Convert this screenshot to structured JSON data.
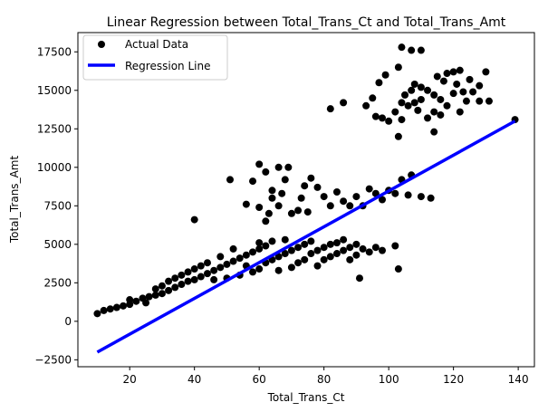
{
  "chart_data": {
    "type": "scatter",
    "title": "Linear Regression between Total_Trans_Ct and Total_Trans_Amt",
    "xlabel": "Total_Trans_Ct",
    "ylabel": "Total_Trans_Amt",
    "xlim": [
      4,
      145
    ],
    "ylim": [
      -2950,
      18750
    ],
    "xticks": [
      20,
      40,
      60,
      80,
      100,
      120,
      140
    ],
    "yticks": [
      -2500,
      0,
      2500,
      5000,
      7500,
      10000,
      12500,
      15000,
      17500
    ],
    "grid": false,
    "legend_position": "top-left",
    "series": [
      {
        "name": "Actual Data",
        "kind": "scatter",
        "color": "#000000",
        "points": [
          [
            10,
            500
          ],
          [
            12,
            700
          ],
          [
            14,
            800
          ],
          [
            16,
            900
          ],
          [
            18,
            1000
          ],
          [
            20,
            1100
          ],
          [
            20,
            1400
          ],
          [
            22,
            1300
          ],
          [
            24,
            1500
          ],
          [
            25,
            1200
          ],
          [
            26,
            1600
          ],
          [
            28,
            1700
          ],
          [
            28,
            2100
          ],
          [
            30,
            1800
          ],
          [
            30,
            2300
          ],
          [
            32,
            2000
          ],
          [
            32,
            2600
          ],
          [
            34,
            2200
          ],
          [
            34,
            2800
          ],
          [
            36,
            2400
          ],
          [
            36,
            3000
          ],
          [
            38,
            2600
          ],
          [
            38,
            3200
          ],
          [
            40,
            2700
          ],
          [
            40,
            3400
          ],
          [
            42,
            2900
          ],
          [
            42,
            3600
          ],
          [
            44,
            3100
          ],
          [
            44,
            3800
          ],
          [
            46,
            3300
          ],
          [
            46,
            2700
          ],
          [
            48,
            3500
          ],
          [
            48,
            4200
          ],
          [
            50,
            3700
          ],
          [
            50,
            2800
          ],
          [
            52,
            3900
          ],
          [
            52,
            4700
          ],
          [
            54,
            4100
          ],
          [
            54,
            3000
          ],
          [
            56,
            4300
          ],
          [
            56,
            3600
          ],
          [
            58,
            4500
          ],
          [
            58,
            3200
          ],
          [
            60,
            4700
          ],
          [
            60,
            3400
          ],
          [
            60,
            5100
          ],
          [
            62,
            3800
          ],
          [
            62,
            4900
          ],
          [
            64,
            4000
          ],
          [
            64,
            5200
          ],
          [
            66,
            4200
          ],
          [
            66,
            3300
          ],
          [
            68,
            4400
          ],
          [
            68,
            5300
          ],
          [
            70,
            4600
          ],
          [
            70,
            3500
          ],
          [
            72,
            4800
          ],
          [
            72,
            3800
          ],
          [
            74,
            5000
          ],
          [
            74,
            4000
          ],
          [
            76,
            4400
          ],
          [
            76,
            5200
          ],
          [
            78,
            4600
          ],
          [
            78,
            3600
          ],
          [
            80,
            4800
          ],
          [
            80,
            4000
          ],
          [
            82,
            5000
          ],
          [
            82,
            4200
          ],
          [
            84,
            5100
          ],
          [
            84,
            4400
          ],
          [
            86,
            4600
          ],
          [
            86,
            5300
          ],
          [
            88,
            4800
          ],
          [
            88,
            4000
          ],
          [
            90,
            5000
          ],
          [
            90,
            4300
          ],
          [
            92,
            4700
          ],
          [
            94,
            4500
          ],
          [
            96,
            4800
          ],
          [
            98,
            4600
          ],
          [
            91,
            2800
          ],
          [
            103,
            3400
          ],
          [
            102,
            4900
          ],
          [
            40,
            6600
          ],
          [
            51,
            9200
          ],
          [
            58,
            9100
          ],
          [
            60,
            10200
          ],
          [
            62,
            9700
          ],
          [
            64,
            8500
          ],
          [
            66,
            10000
          ],
          [
            68,
            9200
          ],
          [
            69,
            10000
          ],
          [
            56,
            7600
          ],
          [
            60,
            7400
          ],
          [
            62,
            6500
          ],
          [
            63,
            7000
          ],
          [
            64,
            8000
          ],
          [
            66,
            7500
          ],
          [
            67,
            8300
          ],
          [
            70,
            7000
          ],
          [
            72,
            7200
          ],
          [
            73,
            8000
          ],
          [
            74,
            8800
          ],
          [
            75,
            7100
          ],
          [
            76,
            9300
          ],
          [
            78,
            8700
          ],
          [
            80,
            8100
          ],
          [
            82,
            7500
          ],
          [
            84,
            8400
          ],
          [
            86,
            7800
          ],
          [
            88,
            7500
          ],
          [
            90,
            8100
          ],
          [
            92,
            7500
          ],
          [
            94,
            8600
          ],
          [
            96,
            8300
          ],
          [
            98,
            7900
          ],
          [
            100,
            8500
          ],
          [
            102,
            8300
          ],
          [
            104,
            9200
          ],
          [
            106,
            8200
          ],
          [
            107,
            9500
          ],
          [
            110,
            8100
          ],
          [
            113,
            8000
          ],
          [
            100,
            13000
          ],
          [
            102,
            13600
          ],
          [
            103,
            12000
          ],
          [
            104,
            13100
          ],
          [
            104,
            14200
          ],
          [
            105,
            14700
          ],
          [
            106,
            14000
          ],
          [
            107,
            15000
          ],
          [
            108,
            14200
          ],
          [
            108,
            15400
          ],
          [
            109,
            13700
          ],
          [
            110,
            15200
          ],
          [
            110,
            14400
          ],
          [
            112,
            13200
          ],
          [
            112,
            15000
          ],
          [
            114,
            13600
          ],
          [
            114,
            14700
          ],
          [
            115,
            15900
          ],
          [
            116,
            13400
          ],
          [
            116,
            14400
          ],
          [
            117,
            15600
          ],
          [
            118,
            14000
          ],
          [
            118,
            16100
          ],
          [
            120,
            14800
          ],
          [
            120,
            16200
          ],
          [
            121,
            15400
          ],
          [
            122,
            13600
          ],
          [
            122,
            16300
          ],
          [
            123,
            14900
          ],
          [
            124,
            14300
          ],
          [
            125,
            15700
          ],
          [
            126,
            14900
          ],
          [
            128,
            15300
          ],
          [
            128,
            14300
          ],
          [
            131,
            14300
          ],
          [
            130,
            16200
          ],
          [
            104,
            17800
          ],
          [
            107,
            17600
          ],
          [
            110,
            17600
          ],
          [
            103,
            16500
          ],
          [
            99,
            16000
          ],
          [
            97,
            15500
          ],
          [
            95,
            14500
          ],
          [
            93,
            14000
          ],
          [
            96,
            13300
          ],
          [
            98,
            13200
          ],
          [
            82,
            13800
          ],
          [
            86,
            14200
          ],
          [
            114,
            12300
          ],
          [
            139,
            13100
          ]
        ]
      },
      {
        "name": "Regression Line",
        "kind": "line",
        "color": "#0000ff",
        "points": [
          [
            10,
            -2000
          ],
          [
            139,
            13000
          ]
        ]
      }
    ]
  }
}
